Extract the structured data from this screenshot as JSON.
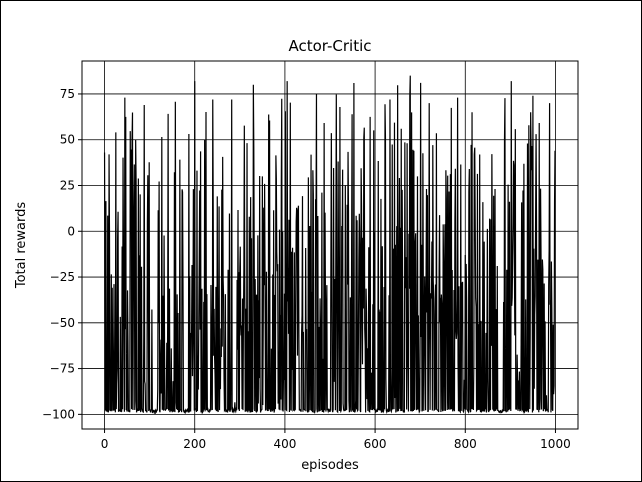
{
  "chart_data": {
    "type": "line",
    "title": "Actor-Critic",
    "xlabel": "episodes",
    "ylabel": "Total rewards",
    "xlim": [
      -50,
      1050
    ],
    "ylim": [
      -108,
      93
    ],
    "xticks": [
      0,
      200,
      400,
      600,
      800,
      1000
    ],
    "yticks": [
      -100,
      -75,
      -50,
      -25,
      0,
      25,
      50,
      75
    ],
    "xtick_labels": [
      "0",
      "200",
      "400",
      "600",
      "800",
      "1000"
    ],
    "ytick_labels": [
      "−100",
      "−75",
      "−50",
      "−25",
      "0",
      "25",
      "50",
      "75"
    ],
    "grid": true,
    "legend": "none",
    "series": [
      {
        "color": "#000000",
        "x_start": 0,
        "x_end": 999,
        "baseline": -98,
        "y_range": [
          -100,
          85
        ],
        "sample_points": [
          {
            "x": 0,
            "y": 43
          },
          {
            "x": 10,
            "y": 42
          },
          {
            "x": 25,
            "y": 54
          },
          {
            "x": 45,
            "y": 73
          },
          {
            "x": 88,
            "y": 69
          },
          {
            "x": 112,
            "y": -100
          },
          {
            "x": 200,
            "y": 82
          },
          {
            "x": 240,
            "y": 72
          },
          {
            "x": 282,
            "y": 72
          },
          {
            "x": 330,
            "y": 80
          },
          {
            "x": 405,
            "y": 82
          },
          {
            "x": 470,
            "y": 75
          },
          {
            "x": 553,
            "y": 81
          },
          {
            "x": 633,
            "y": 72
          },
          {
            "x": 678,
            "y": 85
          },
          {
            "x": 720,
            "y": 70
          },
          {
            "x": 783,
            "y": 73
          },
          {
            "x": 815,
            "y": 65
          },
          {
            "x": 880,
            "y": -99
          },
          {
            "x": 902,
            "y": 82
          },
          {
            "x": 950,
            "y": 74
          },
          {
            "x": 987,
            "y": 70
          },
          {
            "x": 999,
            "y": 44
          }
        ]
      }
    ]
  }
}
